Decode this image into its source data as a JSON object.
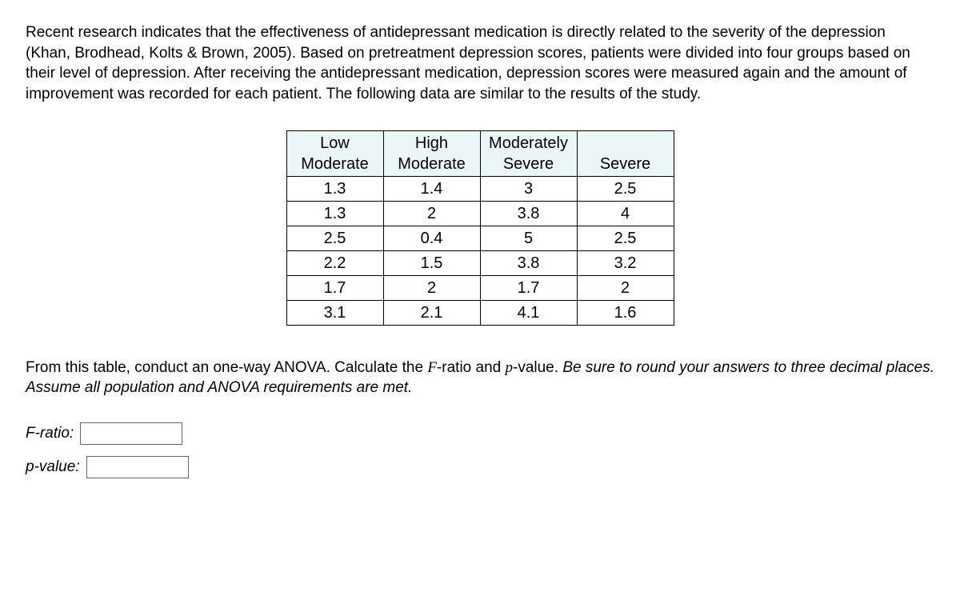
{
  "prompt": "Recent research indicates that the effectiveness of antidepressant medication is directly related to the severity of the depression (Khan, Brodhead, Kolts & Brown, 2005). Based on pretreatment depression scores, patients were divided into four groups based on their level of depression.  After receiving the antidepressant medication, depression scores were measured again and the amount of improvement was recorded for each patient. The following data are similar to the results of the study.",
  "table": {
    "headers": {
      "c0": {
        "l1": "Low",
        "l2": "Moderate"
      },
      "c1": {
        "l1": "High",
        "l2": "Moderate"
      },
      "c2": {
        "l1": "Moderately",
        "l2": "Severe"
      },
      "c3": {
        "l1": "",
        "l2": "Severe"
      }
    },
    "rows": [
      {
        "c0": "1.3",
        "c1": "1.4",
        "c2": "3",
        "c3": "2.5"
      },
      {
        "c0": "1.3",
        "c1": "2",
        "c2": "3.8",
        "c3": "4"
      },
      {
        "c0": "2.5",
        "c1": "0.4",
        "c2": "5",
        "c3": "2.5"
      },
      {
        "c0": "2.2",
        "c1": "1.5",
        "c2": "3.8",
        "c3": "3.2"
      },
      {
        "c0": "1.7",
        "c1": "2",
        "c2": "1.7",
        "c3": "2"
      },
      {
        "c0": "3.1",
        "c1": "2.1",
        "c2": "4.1",
        "c3": "1.6"
      }
    ]
  },
  "instruction": {
    "part1": "From this table, conduct an one-way ANOVA. Calculate the ",
    "F": "F",
    "part2": "-ratio and ",
    "p": "p",
    "part3": "-value. ",
    "ital": "Be sure to round your answers to three decimal places. Assume all population and ANOVA requirements are met."
  },
  "answers": {
    "f_label": "F-ratio:",
    "p_label": "p-value:"
  },
  "style": {
    "header_bg": "#ebf7f7",
    "border_color": "#000000",
    "font_size_body": 19,
    "font_size_table": 20,
    "col_min_width": 100
  }
}
